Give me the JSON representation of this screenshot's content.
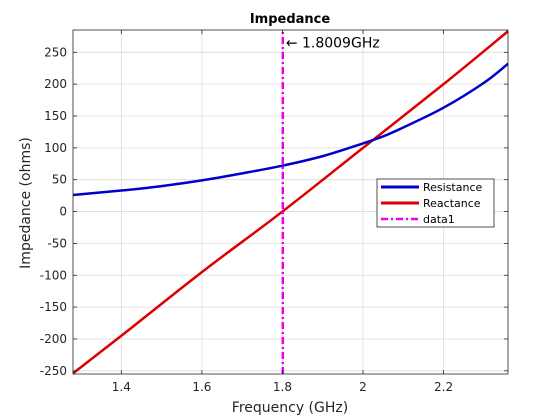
{
  "chart_data": {
    "type": "line",
    "title": "Impedance",
    "xlabel": "Frequency (GHz)",
    "ylabel": "Impedance (ohms)",
    "xlim": [
      1.28,
      2.36
    ],
    "ylim": [
      -255,
      285
    ],
    "xticks": [
      1.4,
      1.6,
      1.8,
      2.0,
      2.2
    ],
    "xtick_labels": [
      "1.4",
      "1.6",
      "1.8",
      "2",
      "2.2"
    ],
    "yticks": [
      -250,
      -200,
      -150,
      -100,
      -50,
      0,
      50,
      100,
      150,
      200,
      250
    ],
    "ytick_labels": [
      "-250",
      "-200",
      "-150",
      "-100",
      "-50",
      "0",
      "50",
      "100",
      "150",
      "200",
      "250"
    ],
    "grid": true,
    "legend_position": "right",
    "series": [
      {
        "name": "Resistance",
        "color": "#0000cc",
        "style": "solid",
        "x": [
          1.28,
          1.4,
          1.5,
          1.6,
          1.7,
          1.8,
          1.9,
          2.0,
          2.05,
          2.1,
          2.2,
          2.3,
          2.36
        ],
        "y": [
          26,
          33,
          40,
          49,
          60,
          72,
          87,
          107,
          118,
          132,
          163,
          202,
          232
        ]
      },
      {
        "name": "Reactance",
        "color": "#dd0000",
        "style": "solid",
        "x": [
          1.28,
          1.4,
          1.6,
          1.8,
          2.0,
          2.2,
          2.36
        ],
        "y": [
          -254,
          -195,
          -95,
          0,
          100,
          200,
          283
        ]
      },
      {
        "name": "data1",
        "color": "#ee00ee",
        "style": "dashdot",
        "x": [
          1.8009,
          1.8009
        ],
        "y": [
          -255,
          285
        ]
      }
    ],
    "annotation": {
      "text": "← 1.8009GHz",
      "x": 1.8009,
      "y": 265
    }
  }
}
